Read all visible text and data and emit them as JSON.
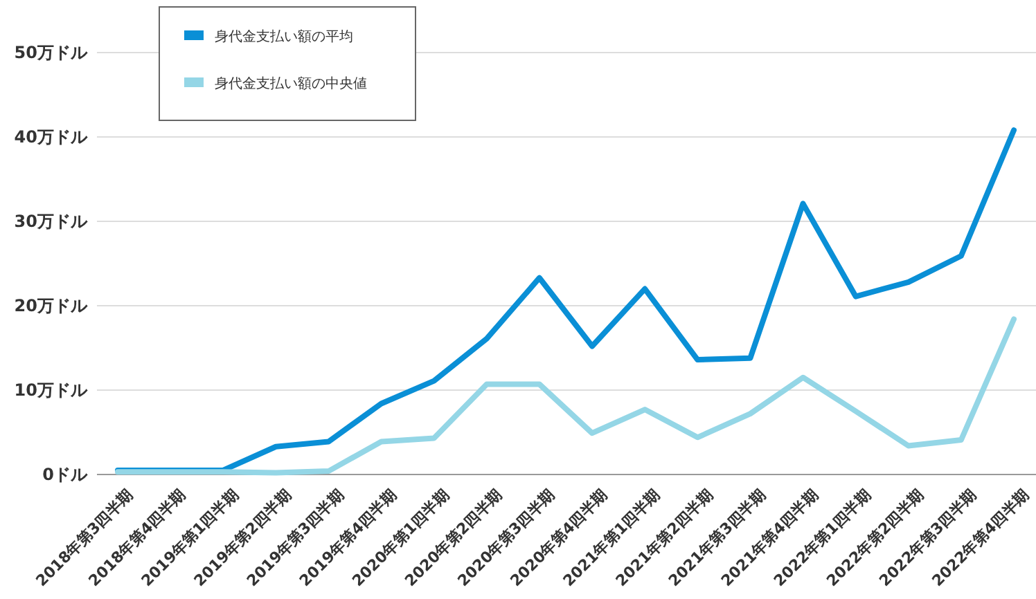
{
  "chart_data": {
    "type": "line",
    "categories": [
      "2018年第3四半期",
      "2018年第4四半期",
      "2019年第1四半期",
      "2019年第2四半期",
      "2019年第3四半期",
      "2019年第4四半期",
      "2020年第1四半期",
      "2020年第2四半期",
      "2020年第3四半期",
      "2020年第4四半期",
      "2021年第1四半期",
      "2021年第2四半期",
      "2021年第3四半期",
      "2021年第4四半期",
      "2022年第1四半期",
      "2022年第2四半期",
      "2022年第3四半期",
      "2022年第4四半期"
    ],
    "series": [
      {
        "name": "身代金支払い額の平均",
        "color": "#0a8fd6",
        "values": [
          0.5,
          0.5,
          0.5,
          3.3,
          3.9,
          8.4,
          11.1,
          16.1,
          23.3,
          15.2,
          22.0,
          13.6,
          13.8,
          32.1,
          21.1,
          22.8,
          25.9,
          40.8
        ]
      },
      {
        "name": "身代金支払い額の中央値",
        "color": "#94d6e6",
        "values": [
          0.3,
          0.3,
          0.3,
          0.2,
          0.4,
          3.9,
          4.3,
          10.7,
          10.7,
          4.9,
          7.7,
          4.4,
          7.2,
          11.5,
          7.5,
          3.4,
          4.1,
          18.4
        ]
      }
    ],
    "ylim": [
      0,
      50
    ],
    "yticks": [
      {
        "value": 0,
        "label": "0ドル"
      },
      {
        "value": 10,
        "label": "10万ドル"
      },
      {
        "value": 20,
        "label": "20万ドル"
      },
      {
        "value": 30,
        "label": "30万ドル"
      },
      {
        "value": 40,
        "label": "40万ドル"
      },
      {
        "value": 50,
        "label": "50万ドル"
      }
    ],
    "grid": "y",
    "legend": "top left",
    "line_style": "solid"
  }
}
